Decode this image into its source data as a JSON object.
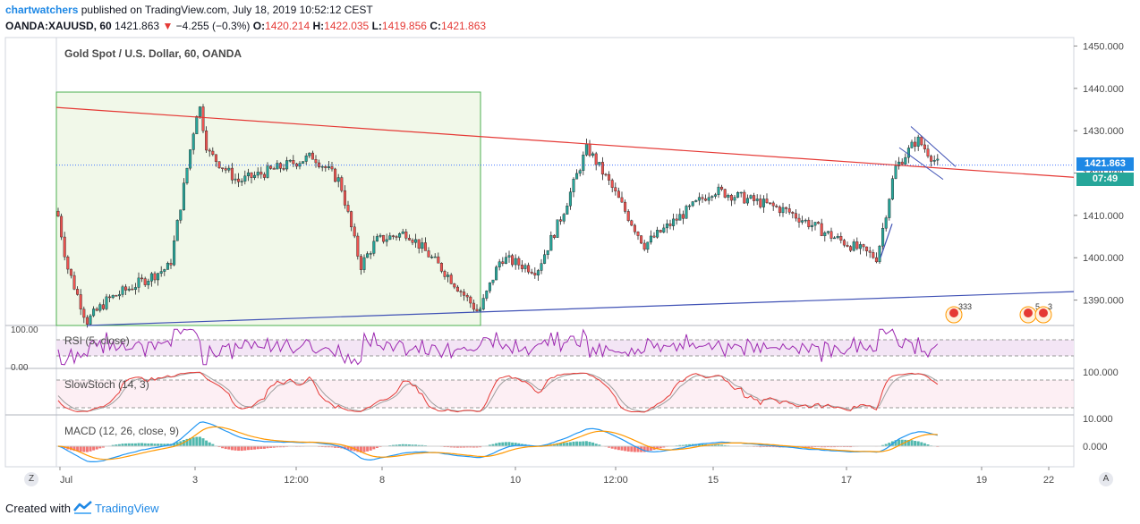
{
  "header": {
    "user": "chartwatchers",
    "published_text": "published on TradingView.com, July 18, 2019 10:52:12 CEST",
    "symbol": "OANDA:XAUUSD, 60",
    "last": "1421.863",
    "change": "−4.255 (−0.3%)",
    "o_label": "O:",
    "o_value": "1420.214",
    "h_label": "H:",
    "h_value": "1422.035",
    "l_label": "L:",
    "l_value": "1419.856",
    "c_label": "C:",
    "c_value": "1421.863"
  },
  "main_pane": {
    "title": "Gold Spot / U.S. Dollar, 60, OANDA",
    "price_tag": "1421.863",
    "time_tag": "07:49",
    "event_badges": [
      "333",
      "5",
      "3"
    ]
  },
  "rsi_pane": {
    "label": "RSI (5, close)",
    "axis_top": "100.00",
    "axis_bottom": "0.00"
  },
  "stoch_pane": {
    "label": "SlowStoch (14, 3)",
    "axis_top": "100.000"
  },
  "macd_pane": {
    "label": "MACD (12, 26, close, 9)",
    "axis_top": "10.000",
    "axis_zero": "0.000"
  },
  "footer": {
    "created_with": "Created with",
    "brand": "TradingView"
  },
  "corners": {
    "left": "Z",
    "right": "A"
  },
  "colors": {
    "up": "#26a69a",
    "down": "#ef5350",
    "wick": "#222222",
    "upper_trend": "#e53935",
    "lower_trend": "#3f51b5",
    "box_stroke": "#4caf50",
    "box_fill": "#f1f8e9",
    "rsi": "#9c27b0",
    "stoch_k": "#e53935",
    "stoch_d": "#9e9e9e",
    "macd": "#2196f3",
    "signal": "#ff9800",
    "hist_pos": "#26a69a",
    "hist_neg": "#ef5350",
    "price_tag": "#1e88e5"
  },
  "chart_data": {
    "type": "candlestick",
    "symbol": "OANDA:XAUUSD",
    "timeframe": "60",
    "x_tick_labels": [
      "Jul",
      "3",
      "12:00",
      "8",
      "10",
      "12:00",
      "15",
      "17",
      "19",
      "22"
    ],
    "y_tick_labels": [
      "1450.000",
      "1440.000",
      "1430.000",
      "1420.000",
      "1410.000",
      "1400.000",
      "1390.000"
    ],
    "ylim": [
      1384,
      1452
    ],
    "approx_close_path": [
      {
        "t": "Jul",
        "close": 1411
      },
      {
        "t": "Jul-1",
        "close": 1398
      },
      {
        "t": "Jul-2 low",
        "close": 1385
      },
      {
        "t": "Jul-2",
        "close": 1390
      },
      {
        "t": "pre-3",
        "close": 1398
      },
      {
        "t": "3 peak",
        "close": 1437
      },
      {
        "t": "3",
        "close": 1425
      },
      {
        "t": "3 12:00",
        "close": 1418
      },
      {
        "t": "5",
        "close": 1424
      },
      {
        "t": "5 late",
        "close": 1418
      },
      {
        "t": "8 drop",
        "close": 1398
      },
      {
        "t": "8",
        "close": 1404
      },
      {
        "t": "8 later",
        "close": 1406
      },
      {
        "t": "9",
        "close": 1396
      },
      {
        "t": "9 low",
        "close": 1387
      },
      {
        "t": "10",
        "close": 1400
      },
      {
        "t": "10 late",
        "close": 1397
      },
      {
        "t": "11",
        "close": 1410
      },
      {
        "t": "11 12:00 peak",
        "close": 1426
      },
      {
        "t": "12",
        "close": 1418
      },
      {
        "t": "12 late",
        "close": 1403
      },
      {
        "t": "15",
        "close": 1416
      },
      {
        "t": "15 late",
        "close": 1413
      },
      {
        "t": "16",
        "close": 1411
      },
      {
        "t": "16 late",
        "close": 1405
      },
      {
        "t": "17",
        "close": 1400
      },
      {
        "t": "17 rally",
        "close": 1421
      },
      {
        "t": "18 peak",
        "close": 1428
      },
      {
        "t": "18",
        "close": 1421.863
      }
    ],
    "trendlines": [
      {
        "name": "upper",
        "from": {
          "t": "Jul",
          "price": 1435.5
        },
        "to": {
          "t": "19",
          "price": 1419
        }
      },
      {
        "name": "lower",
        "from": {
          "t": "Jul-2",
          "price": 1384
        },
        "to": {
          "t": "22",
          "price": 1392
        }
      }
    ],
    "last_close": 1421.863
  }
}
